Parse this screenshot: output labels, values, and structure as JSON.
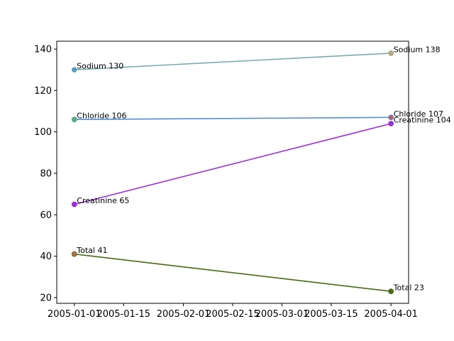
{
  "chart_data": {
    "type": "line",
    "title": "",
    "xlabel": "",
    "ylabel": "",
    "x": [
      "2005-01-01",
      "2005-04-01"
    ],
    "xlim": [
      "2004-12-27",
      "2005-04-06"
    ],
    "ylim": [
      17.2,
      143.8
    ],
    "x_ticks": [
      "2005-01-01",
      "2005-01-15",
      "2005-02-01",
      "2005-02-15",
      "2005-03-01",
      "2005-03-15",
      "2005-04-01"
    ],
    "y_ticks": [
      20,
      40,
      60,
      80,
      100,
      120,
      140
    ],
    "grid": false,
    "legend": "none",
    "series": [
      {
        "values": [
          130,
          138
        ],
        "point_labels": [
          "Sodium 130",
          "Sodium 138"
        ],
        "line_color": "#7aabae",
        "marker_colors": [
          "#4a9ec4",
          "#e0a050"
        ]
      },
      {
        "values": [
          106,
          107
        ],
        "point_labels": [
          "Chloride 106",
          "Chloride 107"
        ],
        "line_color": "#4f8ed8",
        "marker_colors": [
          "#5cb85c",
          "#d9534f"
        ]
      },
      {
        "values": [
          65,
          104
        ],
        "point_labels": [
          "Creatinine 65",
          "Creatinine 104"
        ],
        "line_color": "#9b30d9",
        "marker_colors": [
          "#9b30d9",
          "#9b30d9"
        ]
      },
      {
        "values": [
          41,
          23
        ],
        "point_labels": [
          "Total 41",
          "Total 23"
        ],
        "line_color": "#4a6a10",
        "marker_colors": [
          "#c46a5a",
          "#4a6a10"
        ]
      }
    ]
  }
}
